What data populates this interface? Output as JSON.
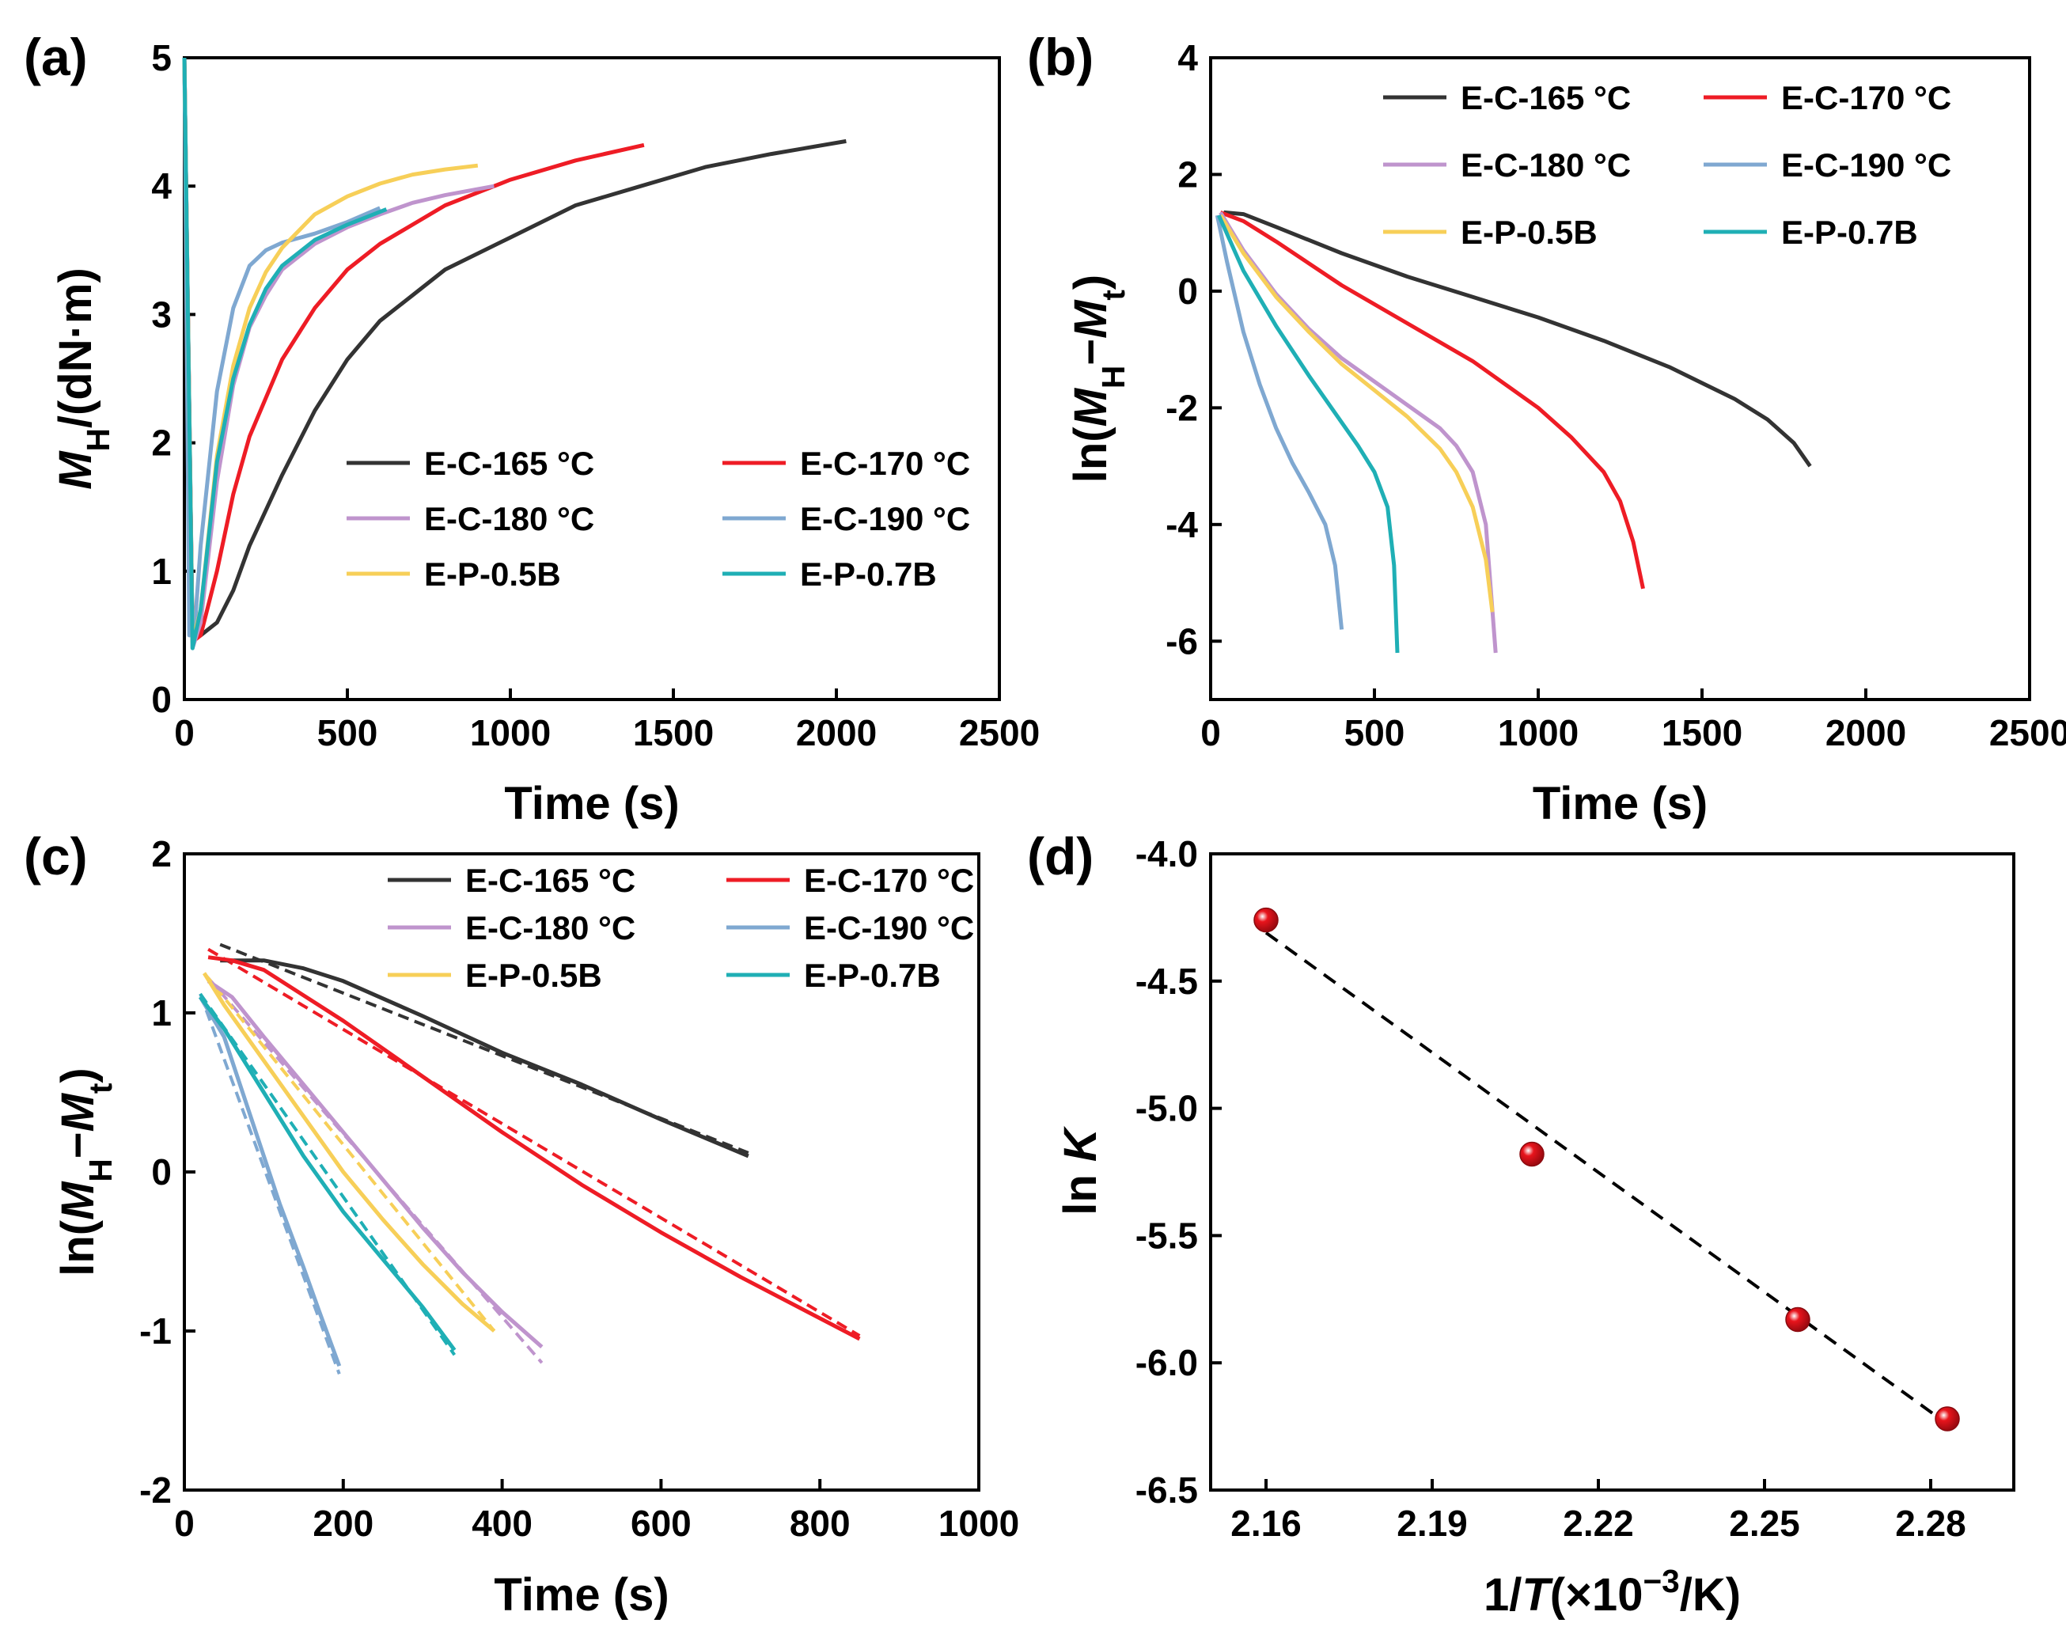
{
  "colors": {
    "E-C-165 °C": "#333333",
    "E-C-170 °C": "#ee1c25",
    "E-C-180 °C": "#bf94cd",
    "E-C-190 °C": "#7fa8d1",
    "E-P-0.5B": "#f7cf58",
    "E-P-0.7B": "#1fafb5",
    "fit_line": "#000000",
    "points": "#e8141c"
  },
  "chart_data": [
    {
      "panel": "(a)",
      "type": "line",
      "xlabel": "Time (s)",
      "ylabel": {
        "main": "M",
        "sub": "H",
        "rest": "/(dN·m)"
      },
      "xlim": [
        0,
        2500
      ],
      "ylim": [
        0,
        5
      ],
      "xticks": [
        "0",
        "500",
        "1000",
        "1500",
        "2000",
        "2500"
      ],
      "yticks": [
        "0",
        "1",
        "2",
        "3",
        "4",
        "5"
      ],
      "legend_position": "bottom-right",
      "series": [
        {
          "name": "E-C-165 °C",
          "x": [
            0,
            25,
            50,
            100,
            150,
            200,
            300,
            400,
            500,
            600,
            700,
            800,
            1000,
            1200,
            1400,
            1600,
            1800,
            2030
          ],
          "y": [
            5.0,
            0.5,
            0.5,
            0.6,
            0.85,
            1.2,
            1.75,
            2.25,
            2.65,
            2.95,
            3.15,
            3.35,
            3.6,
            3.85,
            4.0,
            4.15,
            4.25,
            4.35
          ]
        },
        {
          "name": "E-C-170 °C",
          "x": [
            0,
            25,
            50,
            100,
            150,
            200,
            300,
            400,
            500,
            600,
            700,
            800,
            1000,
            1200,
            1410
          ],
          "y": [
            5.0,
            0.45,
            0.5,
            1.0,
            1.6,
            2.05,
            2.65,
            3.05,
            3.35,
            3.55,
            3.7,
            3.85,
            4.05,
            4.2,
            4.32
          ]
        },
        {
          "name": "E-C-180 °C",
          "x": [
            0,
            25,
            50,
            100,
            150,
            200,
            250,
            300,
            400,
            500,
            600,
            700,
            800,
            950
          ],
          "y": [
            5.0,
            0.4,
            0.6,
            1.7,
            2.45,
            2.9,
            3.15,
            3.35,
            3.55,
            3.68,
            3.78,
            3.87,
            3.93,
            4.0
          ]
        },
        {
          "name": "E-C-190 °C",
          "x": [
            0,
            15,
            30,
            50,
            100,
            150,
            200,
            250,
            300,
            400,
            500,
            600
          ],
          "y": [
            5.0,
            0.5,
            0.5,
            1.2,
            2.4,
            3.05,
            3.38,
            3.5,
            3.56,
            3.63,
            3.72,
            3.83
          ]
        },
        {
          "name": "E-P-0.5B",
          "x": [
            0,
            25,
            50,
            100,
            150,
            200,
            250,
            300,
            400,
            500,
            600,
            700,
            800,
            900
          ],
          "y": [
            5.0,
            0.45,
            0.7,
            1.9,
            2.6,
            3.05,
            3.33,
            3.52,
            3.78,
            3.92,
            4.02,
            4.09,
            4.13,
            4.16
          ]
        },
        {
          "name": "E-P-0.7B",
          "x": [
            0,
            25,
            50,
            100,
            150,
            200,
            250,
            300,
            400,
            500,
            620
          ],
          "y": [
            5.0,
            0.4,
            0.7,
            1.85,
            2.5,
            2.92,
            3.2,
            3.38,
            3.58,
            3.7,
            3.82
          ]
        }
      ]
    },
    {
      "panel": "(b)",
      "type": "line",
      "xlabel": "Time (s)",
      "ylabel": {
        "pre": "ln(",
        "main": "M",
        "sub": "H",
        "mid": "−",
        "main2": "M",
        "sub2": "t",
        "post": ")"
      },
      "xlim": [
        0,
        2500
      ],
      "ylim": [
        -7,
        4
      ],
      "xticks": [
        "0",
        "500",
        "1000",
        "1500",
        "2000",
        "2500"
      ],
      "yticks": [
        "-6",
        "-4",
        "-2",
        "0",
        "2",
        "4"
      ],
      "legend_position": "top-right",
      "series": [
        {
          "name": "E-C-165 °C",
          "x": [
            40,
            100,
            200,
            400,
            600,
            800,
            1000,
            1200,
            1400,
            1600,
            1700,
            1780,
            1830
          ],
          "y": [
            1.35,
            1.32,
            1.1,
            0.65,
            0.25,
            -0.1,
            -0.45,
            -0.85,
            -1.3,
            -1.85,
            -2.2,
            -2.6,
            -3.0
          ]
        },
        {
          "name": "E-C-170 °C",
          "x": [
            30,
            100,
            200,
            400,
            600,
            800,
            1000,
            1100,
            1200,
            1250,
            1290,
            1320
          ],
          "y": [
            1.35,
            1.2,
            0.85,
            0.1,
            -0.55,
            -1.2,
            -2.0,
            -2.5,
            -3.1,
            -3.6,
            -4.3,
            -5.1
          ]
        },
        {
          "name": "E-C-180 °C",
          "x": [
            30,
            100,
            200,
            300,
            400,
            500,
            600,
            700,
            750,
            800,
            840,
            870
          ],
          "y": [
            1.35,
            0.7,
            -0.05,
            -0.65,
            -1.15,
            -1.55,
            -1.95,
            -2.35,
            -2.65,
            -3.1,
            -4.0,
            -6.2
          ]
        },
        {
          "name": "E-C-190 °C",
          "x": [
            20,
            50,
            100,
            150,
            200,
            250,
            300,
            350,
            380,
            400
          ],
          "y": [
            1.3,
            0.5,
            -0.7,
            -1.6,
            -2.35,
            -2.95,
            -3.45,
            -4.0,
            -4.7,
            -5.8
          ]
        },
        {
          "name": "E-P-0.5B",
          "x": [
            30,
            100,
            200,
            300,
            400,
            500,
            600,
            700,
            750,
            800,
            840,
            860
          ],
          "y": [
            1.3,
            0.65,
            -0.1,
            -0.7,
            -1.25,
            -1.7,
            -2.15,
            -2.7,
            -3.1,
            -3.7,
            -4.6,
            -5.5
          ]
        },
        {
          "name": "E-P-0.7B",
          "x": [
            25,
            100,
            200,
            300,
            400,
            450,
            500,
            540,
            560,
            570
          ],
          "y": [
            1.3,
            0.35,
            -0.6,
            -1.45,
            -2.25,
            -2.65,
            -3.1,
            -3.7,
            -4.7,
            -6.2
          ]
        }
      ]
    },
    {
      "panel": "(c)",
      "type": "line",
      "xlabel": "Time (s)",
      "ylabel": {
        "pre": "ln(",
        "main": "M",
        "sub": "H",
        "mid": "−",
        "main2": "M",
        "sub2": "t",
        "post": ")"
      },
      "xlim": [
        0,
        1000
      ],
      "ylim": [
        -2,
        2
      ],
      "xticks": [
        "0",
        "200",
        "400",
        "600",
        "800",
        "1000"
      ],
      "yticks": [
        "-2",
        "-1",
        "0",
        "1",
        "2"
      ],
      "legend_position": "top-right",
      "series": [
        {
          "name": "E-C-165 °C",
          "x": [
            45,
            100,
            150,
            200,
            300,
            400,
            500,
            600,
            710
          ],
          "y": [
            1.33,
            1.33,
            1.28,
            1.2,
            0.98,
            0.75,
            0.55,
            0.33,
            0.1
          ]
        },
        {
          "name": "E-C-170 °C",
          "x": [
            30,
            60,
            100,
            200,
            300,
            400,
            500,
            600,
            700,
            850
          ],
          "y": [
            1.35,
            1.33,
            1.27,
            0.95,
            0.6,
            0.25,
            -0.08,
            -0.38,
            -0.66,
            -1.05
          ]
        },
        {
          "name": "E-C-180 °C",
          "x": [
            30,
            60,
            100,
            150,
            200,
            250,
            300,
            350,
            400,
            450
          ],
          "y": [
            1.2,
            1.1,
            0.85,
            0.55,
            0.25,
            -0.05,
            -0.35,
            -0.63,
            -0.88,
            -1.1
          ]
        },
        {
          "name": "E-C-190 °C",
          "x": [
            20,
            50,
            80,
            100,
            120,
            150,
            170,
            195
          ],
          "y": [
            1.1,
            0.85,
            0.4,
            0.1,
            -0.2,
            -0.6,
            -0.88,
            -1.22
          ]
        },
        {
          "name": "E-P-0.5B",
          "x": [
            25,
            50,
            100,
            150,
            200,
            250,
            300,
            350,
            390
          ],
          "y": [
            1.25,
            1.05,
            0.7,
            0.35,
            0.0,
            -0.3,
            -0.58,
            -0.83,
            -1.0
          ]
        },
        {
          "name": "E-P-0.7B",
          "x": [
            20,
            50,
            100,
            150,
            200,
            250,
            300,
            340
          ],
          "y": [
            1.1,
            0.9,
            0.5,
            0.1,
            -0.25,
            -0.55,
            -0.85,
            -1.12
          ]
        }
      ],
      "fits": [
        {
          "name": "E-C-165 °C",
          "x": [
            45,
            710
          ],
          "y": [
            1.43,
            0.12
          ]
        },
        {
          "name": "E-C-170 °C",
          "x": [
            30,
            850
          ],
          "y": [
            1.4,
            -1.03
          ]
        },
        {
          "name": "E-C-180 °C",
          "x": [
            30,
            450
          ],
          "y": [
            1.22,
            -1.2
          ]
        },
        {
          "name": "E-C-190 °C",
          "x": [
            20,
            195
          ],
          "y": [
            1.12,
            -1.27
          ]
        },
        {
          "name": "E-P-0.5B",
          "x": [
            25,
            390
          ],
          "y": [
            1.25,
            -1.0
          ]
        },
        {
          "name": "E-P-0.7B",
          "x": [
            20,
            340
          ],
          "y": [
            1.12,
            -1.15
          ]
        }
      ]
    },
    {
      "panel": "(d)",
      "type": "scatter",
      "xlabel": {
        "pre": "1/",
        "main": "T",
        "mid": "(×10",
        "sup": "−3",
        "post": "/K)"
      },
      "ylabel": {
        "pre": "ln ",
        "main": "K"
      },
      "xlim": [
        2.15,
        2.295
      ],
      "ylim": [
        -6.5,
        -4.0
      ],
      "xticks": [
        2.16,
        2.19,
        2.22,
        2.25,
        2.28
      ],
      "xtick_labels": [
        "2.16",
        "2.19",
        "2.22",
        "2.25",
        "2.28"
      ],
      "yticks": [
        -6.5,
        -6.0,
        -5.5,
        -5.0,
        -4.5,
        -4.0
      ],
      "ytick_labels": [
        "-6.5",
        "-6.0",
        "-5.5",
        "-5.0",
        "-4.5",
        "-4.0"
      ],
      "points": {
        "x": [
          2.16,
          2.208,
          2.256,
          2.283
        ],
        "y": [
          -4.26,
          -5.18,
          -5.83,
          -6.22
        ]
      },
      "fit": {
        "x": [
          2.16,
          2.283
        ],
        "y": [
          -4.31,
          -6.24
        ]
      }
    }
  ]
}
